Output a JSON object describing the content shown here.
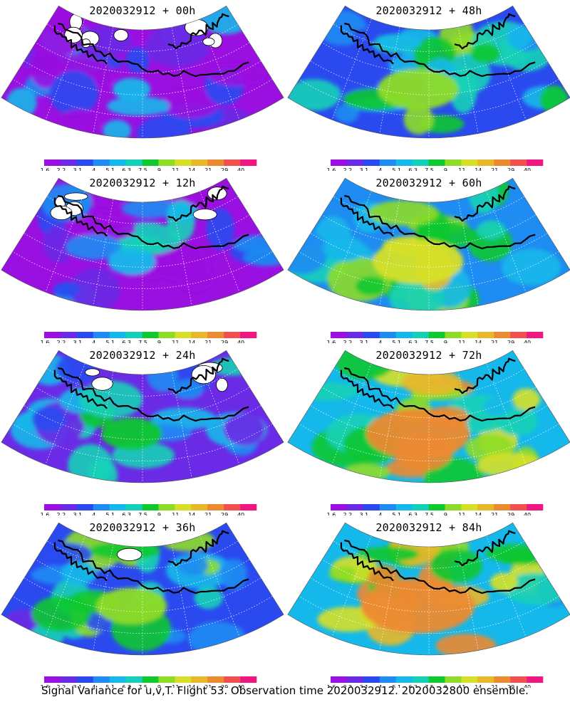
{
  "panels": [
    {
      "title": "2020032912 + 00h",
      "intensity": 0.12,
      "whites": 1.0
    },
    {
      "title": "2020032912 + 12h",
      "intensity": 0.22,
      "whites": 0.8
    },
    {
      "title": "2020032912 + 24h",
      "intensity": 0.35,
      "whites": 0.6
    },
    {
      "title": "2020032912 + 36h",
      "intensity": 0.45,
      "whites": 0.1
    },
    {
      "title": "2020032912 + 48h",
      "intensity": 0.55,
      "whites": 0.0
    },
    {
      "title": "2020032912 + 60h",
      "intensity": 0.65,
      "whites": 0.0
    },
    {
      "title": "2020032912 + 72h",
      "intensity": 0.78,
      "whites": 0.0
    },
    {
      "title": "2020032912 + 84h",
      "intensity": 0.88,
      "whites": 0.0
    }
  ],
  "colorbar": {
    "labels": [
      "1.6",
      "2.2",
      "3.1",
      "4",
      "5.1",
      "6.3",
      "7.5",
      "9",
      "11",
      "14",
      "21",
      "29",
      "40"
    ],
    "colors": [
      "#9a10e0",
      "#6a2ae6",
      "#2a4af0",
      "#1e8cf2",
      "#14b8ea",
      "#14d0b8",
      "#10c830",
      "#8edc28",
      "#d6e028",
      "#e8b82a",
      "#ec8a30",
      "#f05050",
      "#f01880"
    ]
  },
  "footer": "Signal Variance for u,v,T. Flight 53. Observation time 2020032912. 2020032800 ensemble."
}
